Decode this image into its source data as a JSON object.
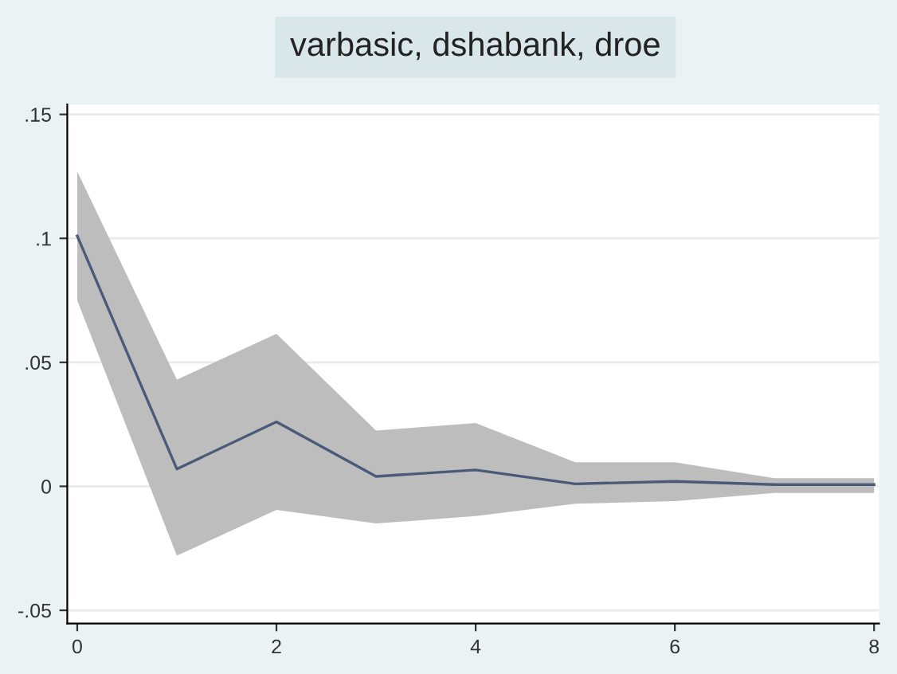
{
  "chart_data": {
    "type": "line",
    "title": "varbasic, dshabank, droe",
    "x": [
      0,
      1,
      2,
      3,
      4,
      5,
      6,
      7,
      8
    ],
    "series": [
      {
        "color": "#4a5a78",
        "values": [
          0.101,
          0.007,
          0.026,
          0.004,
          0.0066,
          0.001,
          0.002,
          0.0007,
          0.0007
        ],
        "lower": [
          0.075,
          -0.028,
          -0.0095,
          -0.015,
          -0.012,
          -0.007,
          -0.006,
          -0.0027,
          -0.0027
        ],
        "upper": [
          0.127,
          0.043,
          0.0615,
          0.0225,
          0.0255,
          0.0097,
          0.0097,
          0.0033,
          0.0033
        ]
      }
    ],
    "xlim": [
      -0.1,
      8.05
    ],
    "ylim": [
      -0.0553,
      0.154
    ],
    "xticks": [
      0,
      2,
      4,
      6,
      8
    ],
    "yticks": [
      {
        "value": -0.05,
        "label": "-.05"
      },
      0,
      {
        "value": 0.05,
        "label": ".05"
      },
      {
        "value": 0.1,
        "label": ".1"
      },
      {
        "value": 0.15,
        "label": ".15"
      }
    ],
    "grid": "y"
  }
}
